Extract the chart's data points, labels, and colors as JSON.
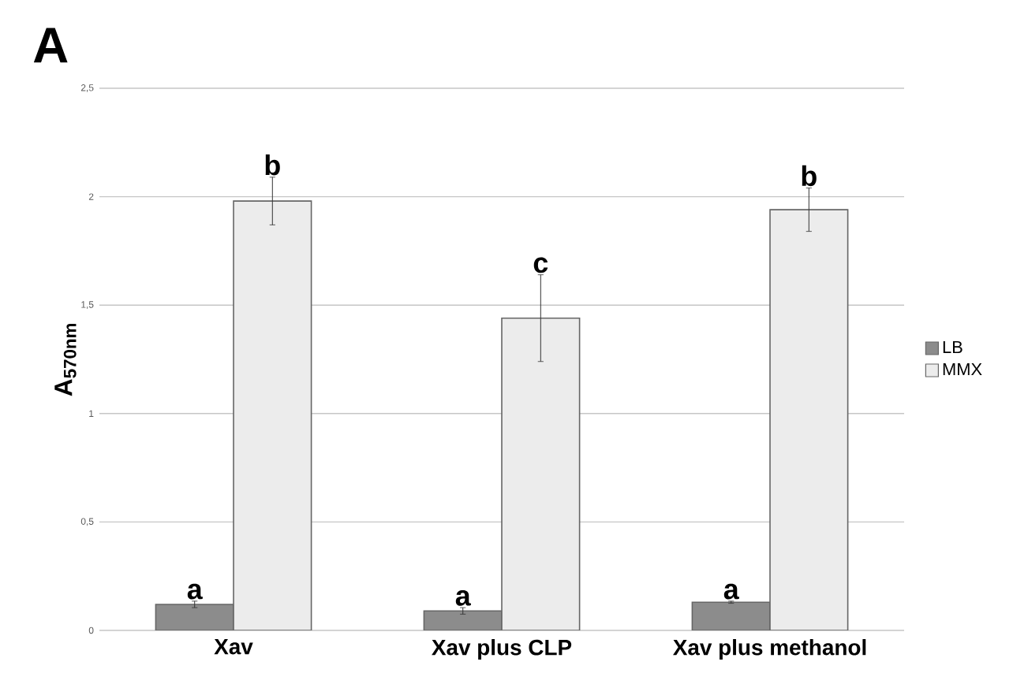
{
  "chart_data": {
    "type": "bar",
    "title": "A",
    "ylabel": "A$_{570nm}$",
    "categories": [
      "Xav",
      "Xav plus CLP",
      "Xav plus methanol"
    ],
    "series": [
      {
        "name": "LB",
        "color": "#8c8c8c",
        "values": [
          0.12,
          0.09,
          0.13
        ],
        "errors": [
          0.015,
          0.015,
          0.005
        ]
      },
      {
        "name": "MMX",
        "color": "#ececec",
        "values": [
          1.98,
          1.44,
          1.94
        ],
        "errors": [
          0.11,
          0.2,
          0.1
        ]
      }
    ],
    "ylim": [
      0,
      2.5
    ],
    "yticks": [
      {
        "value": 0,
        "label": "0"
      },
      {
        "value": 0.5,
        "label": "0,5"
      },
      {
        "value": 1,
        "label": "1"
      },
      {
        "value": 1.5,
        "label": "1,5"
      },
      {
        "value": 2,
        "label": "2"
      },
      {
        "value": 2.5,
        "label": "2,5"
      }
    ],
    "grid": "y",
    "legend": "right",
    "annotations": [
      {
        "text": "a",
        "x": "Xav",
        "y": 0.12
      },
      {
        "text": "b",
        "x": "Xav",
        "y": 1.98
      },
      {
        "text": "a",
        "x": "Xav plus CLP",
        "y": 0.09
      },
      {
        "text": "c",
        "x": "Xav plus CLP",
        "y": 1.44
      },
      {
        "text": "a",
        "x": "Xav plus methanol",
        "y": 0.13
      },
      {
        "text": "b",
        "x": "Xav plus methanol",
        "y": 1.94
      }
    ]
  }
}
